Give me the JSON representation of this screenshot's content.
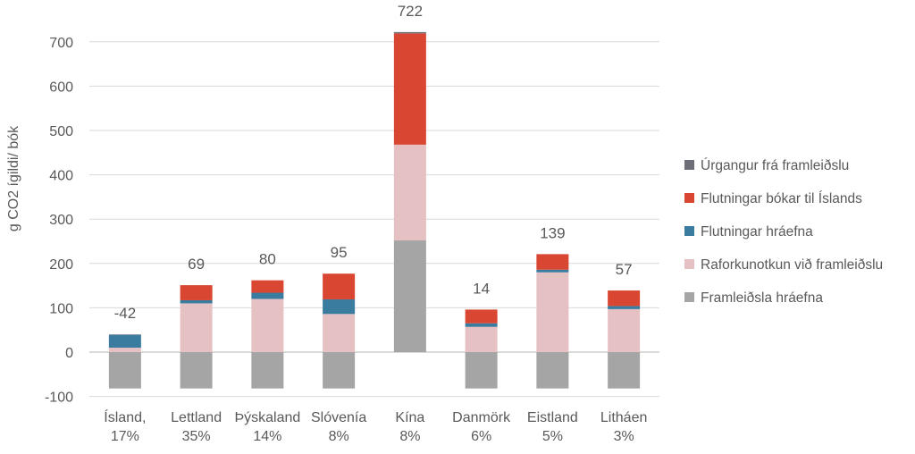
{
  "chart_data": {
    "type": "bar",
    "stacked": true,
    "ylabel": "g CO2 ígildi/ bók",
    "ylim": [
      -100,
      750
    ],
    "yticks": [
      -100,
      0,
      100,
      200,
      300,
      400,
      500,
      600,
      700
    ],
    "grid": true,
    "legend_position": "right",
    "categories": [
      [
        "Ísland,",
        "17%"
      ],
      [
        "Lettland",
        "35%"
      ],
      [
        "Þýskaland",
        "14%"
      ],
      [
        "Slóvenía",
        "8%"
      ],
      [
        "Kína",
        "8%"
      ],
      [
        "Danmörk",
        "6%"
      ],
      [
        "Eistland",
        "5%"
      ],
      [
        "Litháen",
        "3%"
      ]
    ],
    "totals": [
      "-42",
      "69",
      "80",
      "95",
      "722",
      "14",
      "139",
      "57"
    ],
    "series": [
      {
        "name": "Framleiðsla hráefna",
        "color": "#a5a5a5",
        "values": [
          -82,
          -82,
          -82,
          -82,
          252,
          -82,
          -82,
          -82
        ]
      },
      {
        "name": "Raforkunotkun við framleiðslu",
        "color": "#e6c1c3",
        "values": [
          10,
          110,
          120,
          86,
          216,
          57,
          180,
          97
        ]
      },
      {
        "name": "Flutningar hráefna",
        "color": "#3a7ca0",
        "values": [
          29,
          7,
          14,
          33,
          0,
          8,
          6,
          7
        ]
      },
      {
        "name": "Flutningar bókar til Íslands",
        "color": "#d94632",
        "values": [
          0,
          34,
          28,
          58,
          251,
          31,
          35,
          35
        ]
      },
      {
        "name": "Úrgangur frá framleiðslu",
        "color": "#6e6e78",
        "values": [
          1,
          0,
          0,
          0,
          3,
          0,
          0,
          0
        ]
      }
    ]
  }
}
